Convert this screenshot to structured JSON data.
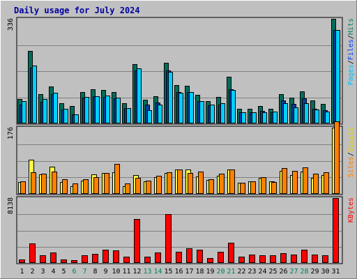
{
  "chart_data": {
    "type": "bar",
    "title": "Daily usage for July 2024",
    "categories": [
      "1",
      "2",
      "3",
      "4",
      "5",
      "6",
      "7",
      "8",
      "9",
      "10",
      "11",
      "12",
      "13",
      "14",
      "15",
      "16",
      "17",
      "18",
      "19",
      "20",
      "21",
      "22",
      "23",
      "24",
      "25",
      "26",
      "27",
      "28",
      "29",
      "30",
      "31"
    ],
    "weekend_days": [
      "6",
      "7",
      "13",
      "14",
      "20",
      "21",
      "27",
      "28"
    ],
    "panels": [
      {
        "id": "hits",
        "ymax": 336,
        "ymax_label": "336",
        "legend": [
          {
            "text": "Pages",
            "color": "#00c0ff"
          },
          {
            "text": "/",
            "color": "#000000"
          },
          {
            "text": "Files",
            "color": "#0040ff"
          },
          {
            "text": "/",
            "color": "#000000"
          },
          {
            "text": "Hits",
            "color": "#008060"
          }
        ],
        "series": [
          {
            "name": "Hits",
            "color": "#006d5b",
            "values": [
              79,
              232,
              93,
              118,
              65,
              55,
              100,
              110,
              108,
              100,
              66,
              191,
              77,
              87,
              195,
              123,
              120,
              91,
              72,
              85,
              150,
              48,
              47,
              55,
              46,
              94,
              82,
              104,
              75,
              63,
              336
            ]
          },
          {
            "name": "Files",
            "color": "#0040a0",
            "values": [
              60,
              180,
              70,
              95,
              45,
              28,
              82,
              88,
              86,
              80,
              50,
              170,
              60,
              68,
              170,
              100,
              100,
              72,
              58,
              60,
              110,
              36,
              35,
              40,
              36,
              75,
              62,
              80,
              48,
              42,
              300
            ]
          },
          {
            "name": "Pages",
            "color": "#00d0ff",
            "values": [
              71,
              186,
              79,
              98,
              48,
              30,
              85,
              88,
              90,
              82,
              49,
              176,
              42,
              61,
              166,
              98,
              101,
              72,
              61,
              64,
              108,
              35,
              35,
              35,
              38,
              65,
              52,
              65,
              45,
              38,
              300
            ]
          }
        ]
      },
      {
        "id": "visits",
        "ymax": 176,
        "ymax_label": "176",
        "legend": [
          {
            "text": "Sites",
            "color": "#ff8000"
          },
          {
            "text": "/",
            "color": "#000000"
          },
          {
            "text": "Visits",
            "color": "#e8d000"
          }
        ],
        "series": [
          {
            "name": "Visits",
            "color": "#ffff40",
            "values": [
              32,
              90,
              51,
              73,
              32,
              21,
              36,
              51,
              55,
              58,
              21,
              50,
              33,
              45,
              56,
              64,
              64,
              46,
              37,
              49,
              65,
              29,
              33,
              42,
              34,
              61,
              50,
              60,
              42,
              50,
              176
            ]
          },
          {
            "name": "Sites",
            "color": "#ff8000",
            "values": [
              34,
              57,
              54,
              60,
              39,
              28,
              38,
              44,
              55,
              80,
              28,
              43,
              36,
              48,
              58,
              65,
              55,
              60,
              39,
              54,
              65,
              30,
              33,
              44,
              32,
              68,
              61,
              71,
              54,
              58,
              192
            ]
          }
        ]
      },
      {
        "id": "kbytes",
        "ymax": 8138,
        "ymax_label": "8138",
        "legend": [
          {
            "text": "KBytes",
            "color": "#ff0000"
          }
        ],
        "series": [
          {
            "name": "KBytes",
            "color": "#ff0000",
            "values": [
              420,
              2480,
              930,
              1270,
              420,
              370,
              980,
              1180,
              1620,
              1580,
              750,
              5500,
              760,
              1280,
              6100,
              1430,
              1880,
              1620,
              620,
              1430,
              2570,
              820,
              1040,
              950,
              990,
              1240,
              1010,
              1620,
              1090,
              1000,
              8138
            ]
          }
        ]
      }
    ]
  }
}
